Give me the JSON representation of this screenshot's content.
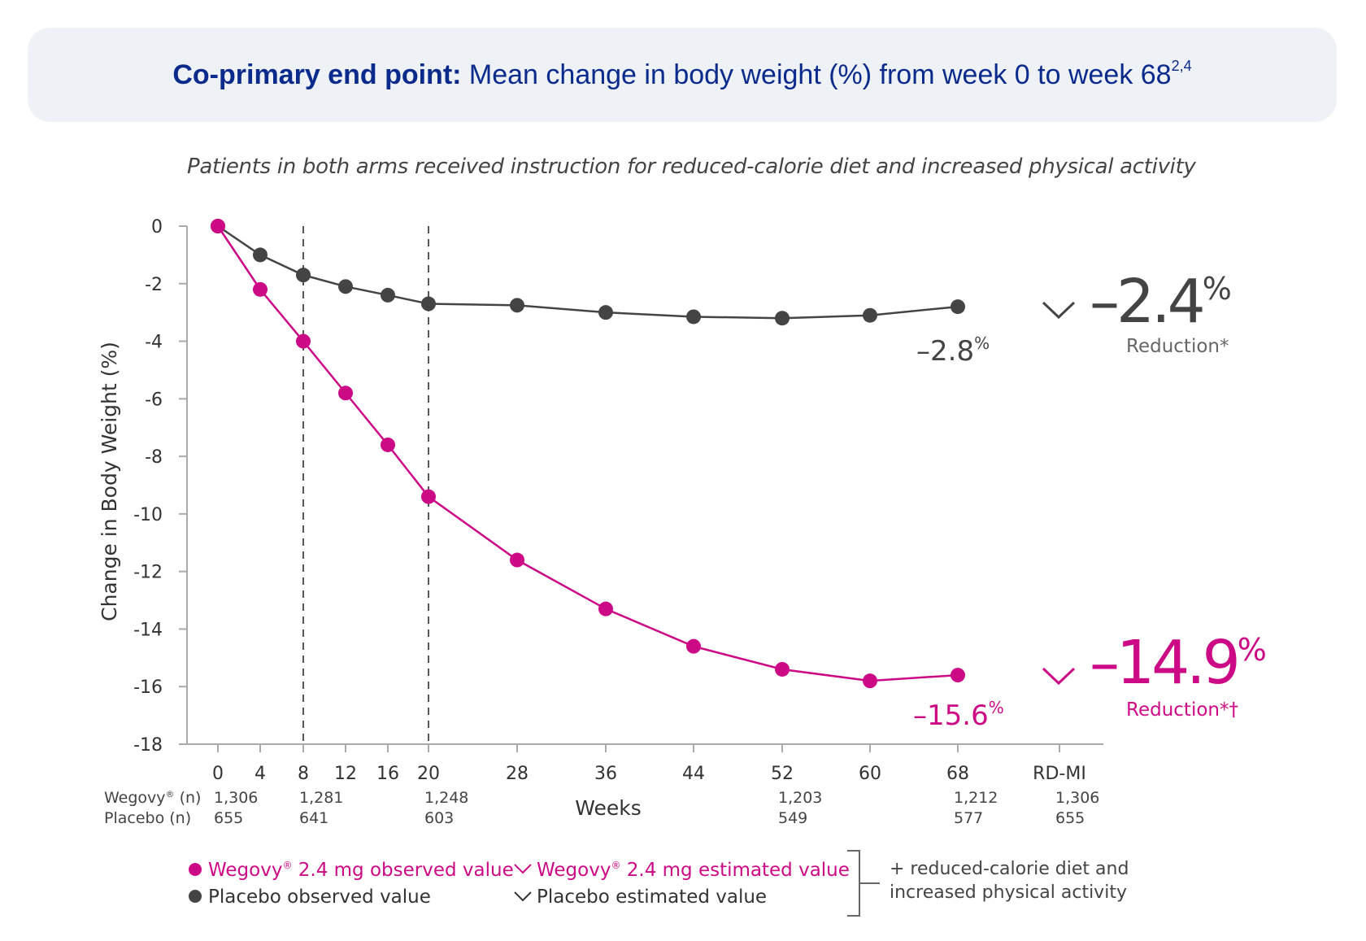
{
  "banner": {
    "bold": "Co-primary end point:",
    "rest": " Mean change in body weight (%) from week 0 to week 68",
    "sup": "2,4"
  },
  "subtitle": "Patients in both arms received instruction for reduced-calorie diet and increased physical activity",
  "colors": {
    "wegovy": "#cc0a86",
    "placebo": "#444444",
    "axis": "#aaaaaa",
    "text": "#333333"
  },
  "chart_data": {
    "type": "line",
    "ylabel": "Change in Body Weight (%)",
    "xlabel": "Weeks",
    "ylim": [
      -18,
      0
    ],
    "yticks": [
      0,
      -2,
      -4,
      -6,
      -8,
      -10,
      -12,
      -14,
      -16,
      -18
    ],
    "xticks": [
      "0",
      "4",
      "8",
      "12",
      "16",
      "20",
      "28",
      "36",
      "44",
      "52",
      "60",
      "68",
      "RD-MI"
    ],
    "x": [
      0,
      4,
      8,
      12,
      16,
      20,
      28,
      36,
      44,
      52,
      60,
      68
    ],
    "dashed_vlines": [
      8,
      20
    ],
    "series": [
      {
        "name": "Placebo observed value",
        "values": [
          0,
          -1.0,
          -1.7,
          -2.1,
          -2.4,
          -2.7,
          -2.75,
          -3.0,
          -3.15,
          -3.2,
          -3.1,
          -2.8
        ]
      },
      {
        "name": "Wegovy 2.4 mg observed value",
        "values": [
          0,
          -2.2,
          -4.0,
          -5.8,
          -7.6,
          -9.4,
          -11.6,
          -13.3,
          -14.6,
          -15.4,
          -15.8,
          -15.6
        ]
      }
    ],
    "end_labels": {
      "placebo": {
        "value": "–2.8",
        "unit": "%"
      },
      "wegovy": {
        "value": "–15.6",
        "unit": "%"
      }
    },
    "estimated": {
      "placebo": {
        "value": "–2.4",
        "unit": "%",
        "caption": "Reduction*"
      },
      "wegovy": {
        "value": "–14.9",
        "unit": "%",
        "caption": "Reduction*†"
      }
    },
    "n_table": {
      "wegovy_label": "Wegovy",
      "wegovy_suffix": " (n)",
      "placebo_label": "Placebo (n)",
      "columns": [
        {
          "x": "0",
          "wegovy": "1,306",
          "placebo": "655"
        },
        {
          "x": "8",
          "wegovy": "1,281",
          "placebo": "641"
        },
        {
          "x": "20",
          "wegovy": "1,248",
          "placebo": "603"
        },
        {
          "x": "52",
          "wegovy": "1,203",
          "placebo": "549"
        },
        {
          "x": "68",
          "wegovy": "1,212",
          "placebo": "577"
        },
        {
          "x": "RD-MI",
          "wegovy": "1,306",
          "placebo": "655"
        }
      ]
    },
    "legend": {
      "wegovy_obs": {
        "pre": "Wegovy",
        "post": " 2.4 mg observed value"
      },
      "wegovy_est": {
        "pre": "Wegovy",
        "post": " 2.4 mg estimated value"
      },
      "placebo_obs": "Placebo observed value",
      "placebo_est": "Placebo estimated value",
      "note_line1": "+ reduced-calorie diet and",
      "note_line2": "increased physical activity"
    }
  }
}
